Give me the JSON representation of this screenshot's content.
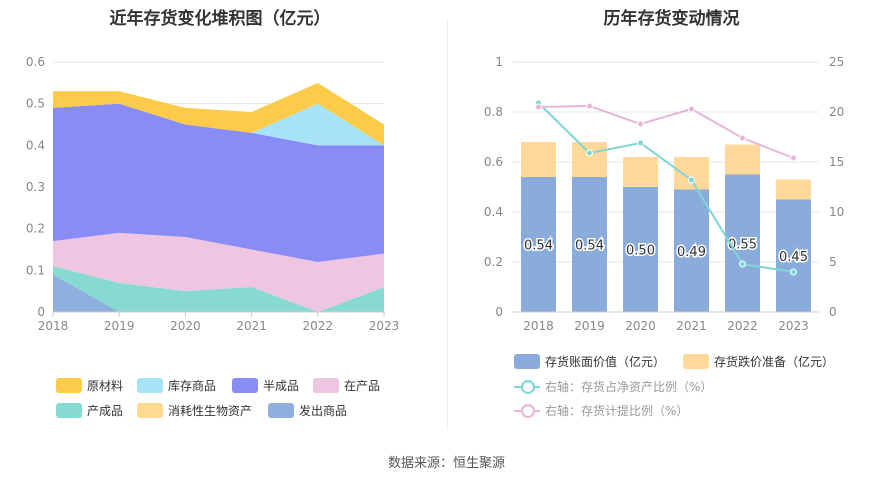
{
  "titles": {
    "left": "近年存货变化堆积图（亿元）",
    "right": "历年存货变动情况"
  },
  "source": "数据来源：恒生聚源",
  "chart_data": [
    {
      "type": "area",
      "title": "近年存货变化堆积图（亿元）",
      "x": [
        "2018",
        "2019",
        "2020",
        "2021",
        "2022",
        "2023"
      ],
      "ylim": [
        0,
        0.6
      ],
      "yticks": [
        "0",
        "0.1",
        "0.2",
        "0.3",
        "0.4",
        "0.5",
        "0.6"
      ],
      "stacked": true,
      "grid": true,
      "legend_position": "bottom",
      "series": [
        {
          "name": "发出商品",
          "color": "#8fb0de",
          "values": [
            0.09,
            0.0,
            0.0,
            0.0,
            0.0,
            0.0
          ]
        },
        {
          "name": "产成品",
          "color": "#86dad2",
          "values": [
            0.02,
            0.07,
            0.05,
            0.06,
            0.0,
            0.06
          ]
        },
        {
          "name": "在产品",
          "color": "#eec6e2",
          "values": [
            0.06,
            0.12,
            0.13,
            0.09,
            0.12,
            0.08
          ]
        },
        {
          "name": "半成品",
          "color": "#8a8cf6",
          "values": [
            0.32,
            0.31,
            0.27,
            0.28,
            0.28,
            0.26
          ]
        },
        {
          "name": "库存商品",
          "color": "#a6e3f8",
          "values": [
            0.0,
            0.0,
            0.0,
            0.0,
            0.1,
            0.0
          ]
        },
        {
          "name": "消耗性生物资产",
          "color": "#ffd98f",
          "values": [
            0.0,
            0.0,
            0.0,
            0.0,
            0.0,
            0.0
          ]
        },
        {
          "name": "原材料",
          "color": "#fccb4a",
          "values": [
            0.04,
            0.03,
            0.04,
            0.05,
            0.05,
            0.05
          ]
        }
      ],
      "legend_order": [
        "原材料",
        "库存商品",
        "半成品",
        "在产品",
        "产成品",
        "消耗性生物资产",
        "发出商品"
      ]
    },
    {
      "type": "bar",
      "title": "历年存货变动情况",
      "categories": [
        "2018",
        "2019",
        "2020",
        "2021",
        "2022",
        "2023"
      ],
      "ylim_left": [
        0,
        1
      ],
      "yticks_left": [
        "0",
        "0.2",
        "0.4",
        "0.6",
        "0.8",
        "1"
      ],
      "ylim_right": [
        0,
        25
      ],
      "yticks_right": [
        "0",
        "5",
        "10",
        "15",
        "20",
        "25"
      ],
      "legend_position": "bottom",
      "series": [
        {
          "name": "存货账面价值（亿元）",
          "kind": "bar",
          "color": "#8aacdb",
          "values": [
            0.54,
            0.54,
            0.5,
            0.49,
            0.55,
            0.45
          ],
          "labels": [
            "0.54",
            "0.54",
            "0.50",
            "0.49",
            "0.55",
            "0.45"
          ]
        },
        {
          "name": "存货跌价准备（亿元）",
          "kind": "bar",
          "color": "#ffd89a",
          "values": [
            0.14,
            0.14,
            0.12,
            0.13,
            0.12,
            0.08
          ]
        },
        {
          "name": "右轴：存货占净资产比例（%）",
          "kind": "line",
          "axis": "right",
          "color": "#7fd6d3",
          "values": [
            20.9,
            15.9,
            16.9,
            13.2,
            4.8,
            4.0
          ]
        },
        {
          "name": "右轴：存货计提比例（%）",
          "kind": "line",
          "axis": "right",
          "color": "#e6b6d6",
          "values": [
            20.5,
            20.6,
            18.8,
            20.3,
            17.4,
            15.4
          ]
        }
      ]
    }
  ]
}
